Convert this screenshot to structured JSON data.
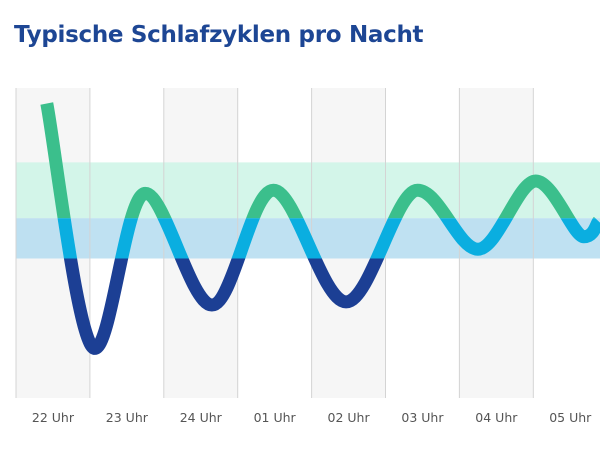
{
  "chart_data": {
    "type": "line",
    "title": "Typische Schlafzyklen pro Nacht",
    "categories": [
      "22 Uhr",
      "23 Uhr",
      "24 Uhr",
      "01 Uhr",
      "02 Uhr",
      "03 Uhr",
      "04 Uhr",
      "05 Uhr"
    ],
    "x_start": "22:00",
    "y_range": [
      0,
      100
    ],
    "bands": [
      {
        "from": 58,
        "to": 76,
        "color": "#cdf5e6"
      },
      {
        "from": 45,
        "to": 58,
        "color": "#b4dcf0"
      }
    ],
    "series": [
      {
        "points": [
          {
            "x": "22:25",
            "y": 95
          },
          {
            "x": "23:04",
            "y": 16
          },
          {
            "x": "23:45",
            "y": 66
          },
          {
            "x": "00:39",
            "y": 30
          },
          {
            "x": "01:29",
            "y": 67
          },
          {
            "x": "02:28",
            "y": 31
          },
          {
            "x": "03:26",
            "y": 67
          },
          {
            "x": "04:15",
            "y": 48
          },
          {
            "x": "05:02",
            "y": 70
          },
          {
            "x": "05:41",
            "y": 52
          },
          {
            "x": "05:53",
            "y": 57
          }
        ]
      }
    ],
    "colors": {
      "high": "#3bbf8c",
      "mid": "#0aaee0",
      "low": "#1c3f94",
      "grid": "#d4d4d4",
      "shade": "#f6f6f6"
    },
    "grid": true
  }
}
